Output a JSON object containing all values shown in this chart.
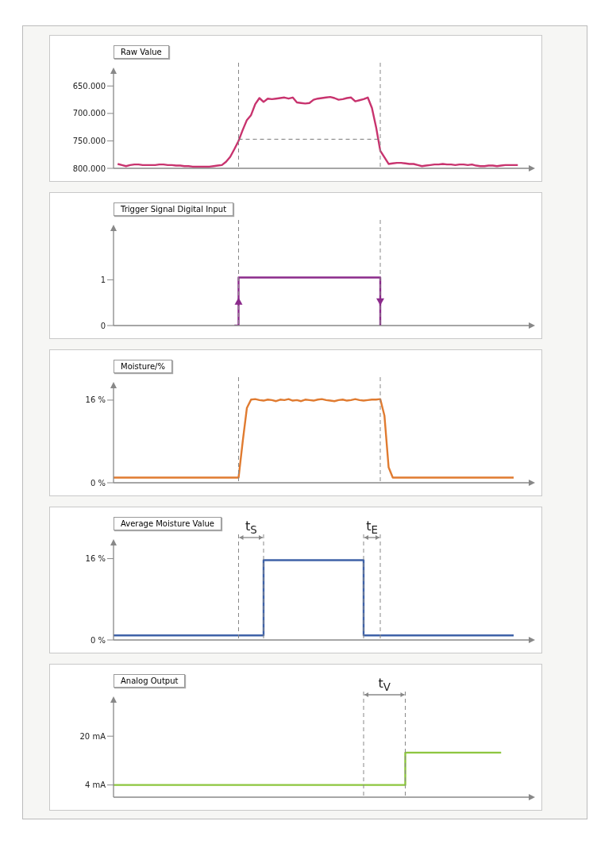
{
  "chart_data": [
    {
      "type": "line",
      "title": "Raw Value",
      "categories": [
        null,
        null,
        null,
        null,
        null,
        null,
        null,
        null,
        null,
        null,
        null,
        null,
        null,
        null,
        null,
        null,
        null,
        null,
        null,
        null,
        null,
        null,
        null,
        null,
        null,
        null,
        null,
        null,
        null,
        null,
        null,
        null,
        null,
        null,
        null,
        null,
        null,
        null,
        null,
        null,
        null,
        null,
        null,
        null,
        null,
        null,
        null,
        null,
        null,
        null,
        null,
        null,
        null,
        null,
        null,
        null,
        null,
        null,
        null,
        null,
        null,
        null,
        null,
        null,
        null,
        null,
        null,
        null,
        null,
        null,
        null,
        null,
        null,
        null,
        null,
        null,
        null,
        null,
        null,
        null,
        null,
        null,
        null,
        null,
        null,
        null,
        null,
        null,
        null,
        null,
        null,
        null,
        null,
        null,
        null,
        null,
        null,
        null,
        null,
        null,
        null
      ],
      "series": [
        {
          "color": "#c8336e",
          "values": [
            null,
            792000,
            794000,
            796000,
            794000,
            793000,
            793000,
            794000,
            794000,
            794000,
            794000,
            793000,
            793000,
            794000,
            794000,
            795000,
            795000,
            796000,
            796000,
            797000,
            797000,
            797000,
            797000,
            797000,
            796000,
            795000,
            794000,
            788000,
            779000,
            765000,
            750000,
            730000,
            712000,
            703000,
            683000,
            672000,
            679000,
            673000,
            674000,
            673000,
            672000,
            671000,
            673000,
            671000,
            680000,
            681000,
            682000,
            681000,
            675000,
            673000,
            672000,
            671000,
            670000,
            672000,
            675000,
            674000,
            672000,
            671000,
            678000,
            676000,
            674000,
            671000,
            690000,
            725000,
            768000,
            780000,
            792000,
            791000,
            790000,
            790000,
            791000,
            792000,
            792000,
            794000,
            796000,
            795000,
            794000,
            793000,
            793000,
            792000,
            793000,
            793000,
            794000,
            793000,
            793000,
            794000,
            793000,
            795000,
            796000,
            796000,
            795000,
            795000,
            796000,
            795000,
            794000,
            794000,
            794000,
            794000,
            null,
            null,
            null
          ]
        },
        {
          "color": "#777777",
          "line_style": "dashed",
          "values": [
            null,
            null,
            null,
            null,
            null,
            null,
            null,
            null,
            null,
            null,
            null,
            null,
            null,
            null,
            null,
            null,
            null,
            null,
            null,
            null,
            null,
            null,
            null,
            null,
            null,
            null,
            null,
            null,
            null,
            null,
            747000,
            747000,
            747000,
            747000,
            747000,
            747000,
            747000,
            747000,
            747000,
            747000,
            747000,
            747000,
            747000,
            747000,
            747000,
            747000,
            747000,
            747000,
            747000,
            747000,
            747000,
            747000,
            747000,
            747000,
            747000,
            747000,
            747000,
            747000,
            747000,
            747000,
            747000,
            747000,
            747000,
            747000,
            747000,
            null,
            null,
            null,
            null,
            null,
            null,
            null,
            null,
            null,
            null,
            null,
            null,
            null,
            null,
            null,
            null,
            null,
            null,
            null,
            null,
            null,
            null,
            null,
            null,
            null,
            null,
            null,
            null,
            null,
            null,
            null,
            null,
            null,
            null,
            null,
            null
          ]
        }
      ],
      "ylim": [
        800000,
        625000
      ],
      "yticks": [
        {
          "value": 650000,
          "label": "650.000"
        },
        {
          "value": 700000,
          "label": "700.000"
        },
        {
          "value": 750000,
          "label": "750.000"
        },
        {
          "value": 800000,
          "label": "800.000"
        }
      ],
      "tick_labels": "y"
    },
    {
      "type": "line",
      "title": "Trigger Signal Digital Input",
      "categories": [
        null,
        null,
        null,
        null,
        null,
        null,
        null,
        null,
        null,
        null,
        null,
        null,
        null,
        null,
        null,
        null,
        null,
        null,
        null,
        null,
        null,
        null,
        null,
        null,
        null,
        null,
        null,
        null,
        null,
        null,
        null,
        null,
        null,
        null,
        null,
        null,
        null,
        null,
        null,
        null,
        null,
        null,
        null,
        null,
        null,
        null,
        null,
        null,
        null,
        null,
        null,
        null,
        null,
        null,
        null,
        null,
        null,
        null,
        null,
        null,
        null,
        null,
        null,
        null,
        null,
        null,
        null,
        null,
        null,
        null,
        null,
        null,
        null,
        null,
        null,
        null,
        null,
        null,
        null,
        null,
        null,
        null,
        null,
        null,
        null,
        null,
        null,
        null,
        null,
        null,
        null,
        null,
        null,
        null,
        null,
        null,
        null,
        null,
        null,
        null,
        null
      ],
      "series": [
        {
          "type": "step",
          "color": "#8b2a8b",
          "values": [
            null,
            null,
            null,
            null,
            null,
            null,
            null,
            null,
            null,
            null,
            null,
            null,
            null,
            null,
            null,
            null,
            null,
            null,
            null,
            null,
            null,
            null,
            null,
            null,
            null,
            null,
            null,
            null,
            null,
            0,
            1.05,
            1.05,
            1.05,
            1.05,
            1.05,
            1.05,
            1.05,
            1.05,
            1.05,
            1.05,
            1.05,
            1.05,
            1.05,
            1.05,
            1.05,
            1.05,
            1.05,
            1.05,
            1.05,
            1.05,
            1.05,
            1.05,
            1.05,
            1.05,
            1.05,
            1.05,
            1.05,
            1.05,
            1.05,
            1.05,
            1.05,
            1.05,
            1.05,
            1.05,
            0,
            null,
            null,
            null,
            null,
            null,
            null,
            null,
            null,
            null,
            null,
            null,
            null,
            null,
            null,
            null,
            null,
            null,
            null,
            null,
            null,
            null,
            null,
            null,
            null,
            null,
            null,
            null,
            null,
            null,
            null,
            null,
            null,
            null,
            null,
            null,
            null
          ]
        }
      ],
      "ylim": [
        0,
        2.1
      ],
      "yticks": [
        0,
        1
      ],
      "tick_labels": "y"
    },
    {
      "type": "line",
      "title": "Moisture/%",
      "categories": [
        null,
        null,
        null,
        null,
        null,
        null,
        null,
        null,
        null,
        null,
        null,
        null,
        null,
        null,
        null,
        null,
        null,
        null,
        null,
        null,
        null,
        null,
        null,
        null,
        null,
        null,
        null,
        null,
        null,
        null,
        null,
        null,
        null,
        null,
        null,
        null,
        null,
        null,
        null,
        null,
        null,
        null,
        null,
        null,
        null,
        null,
        null,
        null,
        null,
        null,
        null,
        null,
        null,
        null,
        null,
        null,
        null,
        null,
        null,
        null,
        null,
        null,
        null,
        null,
        null,
        null,
        null,
        null,
        null,
        null,
        null,
        null,
        null,
        null,
        null,
        null,
        null,
        null,
        null,
        null,
        null,
        null,
        null,
        null,
        null,
        null,
        null,
        null,
        null,
        null,
        null,
        null,
        null,
        null,
        null,
        null,
        null,
        null,
        null,
        null,
        null
      ],
      "series": [
        {
          "color": "#e07b30",
          "values": [
            1,
            1,
            1,
            1,
            1,
            1,
            1,
            1,
            1,
            1,
            1,
            1,
            1,
            1,
            1,
            1,
            1,
            1,
            1,
            1,
            1,
            1,
            1,
            1,
            1,
            1,
            1,
            1,
            1,
            1,
            1,
            8,
            14.5,
            16.1,
            16.2,
            16.0,
            15.9,
            16.1,
            16.0,
            15.8,
            16.1,
            16.0,
            16.2,
            15.9,
            16.0,
            15.8,
            16.1,
            16.0,
            15.9,
            16.1,
            16.2,
            16.0,
            15.9,
            15.8,
            16.0,
            16.1,
            15.9,
            16.0,
            16.2,
            16.0,
            15.9,
            16.0,
            16.1,
            16.1,
            16.2,
            13,
            3,
            1,
            1,
            1,
            1,
            1,
            1,
            1,
            1,
            1,
            1,
            1,
            1,
            1,
            1,
            1,
            1,
            1,
            1,
            1,
            1,
            1,
            1,
            1,
            1,
            1,
            1,
            1,
            1,
            1,
            1,
            null,
            null,
            null,
            null
          ]
        }
      ],
      "ylim": [
        0,
        18.6
      ],
      "yticks": [
        {
          "value": 0,
          "label": "0 %"
        },
        {
          "value": 16,
          "label": "16 %"
        }
      ],
      "tick_labels": "y"
    },
    {
      "type": "line",
      "title": "Average Moisture Value",
      "categories": [
        null,
        null,
        null,
        null,
        null,
        null,
        null,
        null,
        null,
        null,
        null,
        null,
        null,
        null,
        null,
        null,
        null,
        null,
        null,
        null,
        null,
        null,
        null,
        null,
        null,
        null,
        null,
        null,
        null,
        null,
        null,
        null,
        null,
        null,
        null,
        null,
        null,
        null,
        null,
        null,
        null,
        null,
        null,
        null,
        null,
        null,
        null,
        null,
        null,
        null,
        null,
        null,
        null,
        null,
        null,
        null,
        null,
        null,
        null,
        null,
        null,
        null,
        null,
        null,
        null,
        null,
        null,
        null,
        null,
        null,
        null,
        null,
        null,
        null,
        null,
        null,
        null,
        null,
        null,
        null,
        null,
        null,
        null,
        null,
        null,
        null,
        null,
        null,
        null,
        null,
        null,
        null,
        null,
        null,
        null,
        null,
        null,
        null,
        null,
        null,
        null
      ],
      "series": [
        {
          "type": "step",
          "color": "#3f62a8",
          "values": [
            0.9,
            0.9,
            0.9,
            0.9,
            0.9,
            0.9,
            0.9,
            0.9,
            0.9,
            0.9,
            0.9,
            0.9,
            0.9,
            0.9,
            0.9,
            0.9,
            0.9,
            0.9,
            0.9,
            0.9,
            0.9,
            0.9,
            0.9,
            0.9,
            0.9,
            0.9,
            0.9,
            0.9,
            0.9,
            0.9,
            0.9,
            0.9,
            0.9,
            0.9,
            0.9,
            0.9,
            15.7,
            15.7,
            15.7,
            15.7,
            15.7,
            15.7,
            15.7,
            15.7,
            15.7,
            15.7,
            15.7,
            15.7,
            15.7,
            15.7,
            15.7,
            15.7,
            15.7,
            15.7,
            15.7,
            15.7,
            15.7,
            15.7,
            15.7,
            15.7,
            0.9,
            0.9,
            0.9,
            0.9,
            0.9,
            0.9,
            0.9,
            0.9,
            0.9,
            0.9,
            0.9,
            0.9,
            0.9,
            0.9,
            0.9,
            0.9,
            0.9,
            0.9,
            0.9,
            0.9,
            0.9,
            0.9,
            0.9,
            0.9,
            0.9,
            0.9,
            0.9,
            0.9,
            0.9,
            0.9,
            0.9,
            0.9,
            0.9,
            0.9,
            0.9,
            0.9,
            0.9,
            null,
            null,
            null,
            null
          ]
        }
      ],
      "ylim": [
        0,
        18.9
      ],
      "yticks": [
        {
          "value": 0,
          "label": "0 %"
        },
        {
          "value": 16,
          "label": "16 %"
        }
      ],
      "tick_labels": "y",
      "annotations": [
        "t$_{S}$",
        "t$_{E}$"
      ]
    },
    {
      "type": "line",
      "title": "Analog Output",
      "categories": [
        null,
        null,
        null,
        null,
        null,
        null,
        null,
        null,
        null,
        null,
        null,
        null,
        null,
        null,
        null,
        null,
        null,
        null,
        null,
        null,
        null,
        null,
        null,
        null,
        null,
        null,
        null,
        null,
        null,
        null,
        null,
        null,
        null,
        null,
        null,
        null,
        null,
        null,
        null,
        null,
        null,
        null,
        null,
        null,
        null,
        null,
        null,
        null,
        null,
        null,
        null,
        null,
        null,
        null,
        null,
        null,
        null,
        null,
        null,
        null,
        null,
        null,
        null,
        null,
        null,
        null,
        null,
        null,
        null,
        null,
        null,
        null,
        null,
        null,
        null,
        null,
        null,
        null,
        null,
        null,
        null,
        null,
        null,
        null,
        null,
        null,
        null,
        null,
        null,
        null,
        null,
        null,
        null,
        null,
        null,
        null,
        null,
        null,
        null,
        null,
        null
      ],
      "series": [
        {
          "type": "step",
          "color": "#8dc63f",
          "values": [
            4,
            4,
            4,
            4,
            4,
            4,
            4,
            4,
            4,
            4,
            4,
            4,
            4,
            4,
            4,
            4,
            4,
            4,
            4,
            4,
            4,
            4,
            4,
            4,
            4,
            4,
            4,
            4,
            4,
            4,
            4,
            4,
            4,
            4,
            4,
            4,
            4,
            4,
            4,
            4,
            4,
            4,
            4,
            4,
            4,
            4,
            4,
            4,
            4,
            4,
            4,
            4,
            4,
            4,
            4,
            4,
            4,
            4,
            4,
            4,
            4,
            4,
            4,
            4,
            4,
            4,
            4,
            4,
            4,
            4,
            14.6,
            14.6,
            14.6,
            14.6,
            14.6,
            14.6,
            14.6,
            14.6,
            14.6,
            14.6,
            14.6,
            14.6,
            14.6,
            14.6,
            14.6,
            14.6,
            14.6,
            14.6,
            14.6,
            14.6,
            14.6,
            14.6,
            14.6,
            14.6,
            null,
            null,
            null,
            null,
            null,
            null,
            null
          ]
        }
      ],
      "ylim": [
        0,
        31.5
      ],
      "yticks": [
        {
          "value": 4,
          "label": "4 mA"
        },
        {
          "value": 20,
          "label": "20 mA"
        }
      ],
      "tick_labels": "y",
      "annotations": [
        "t$_{V}$"
      ]
    }
  ]
}
